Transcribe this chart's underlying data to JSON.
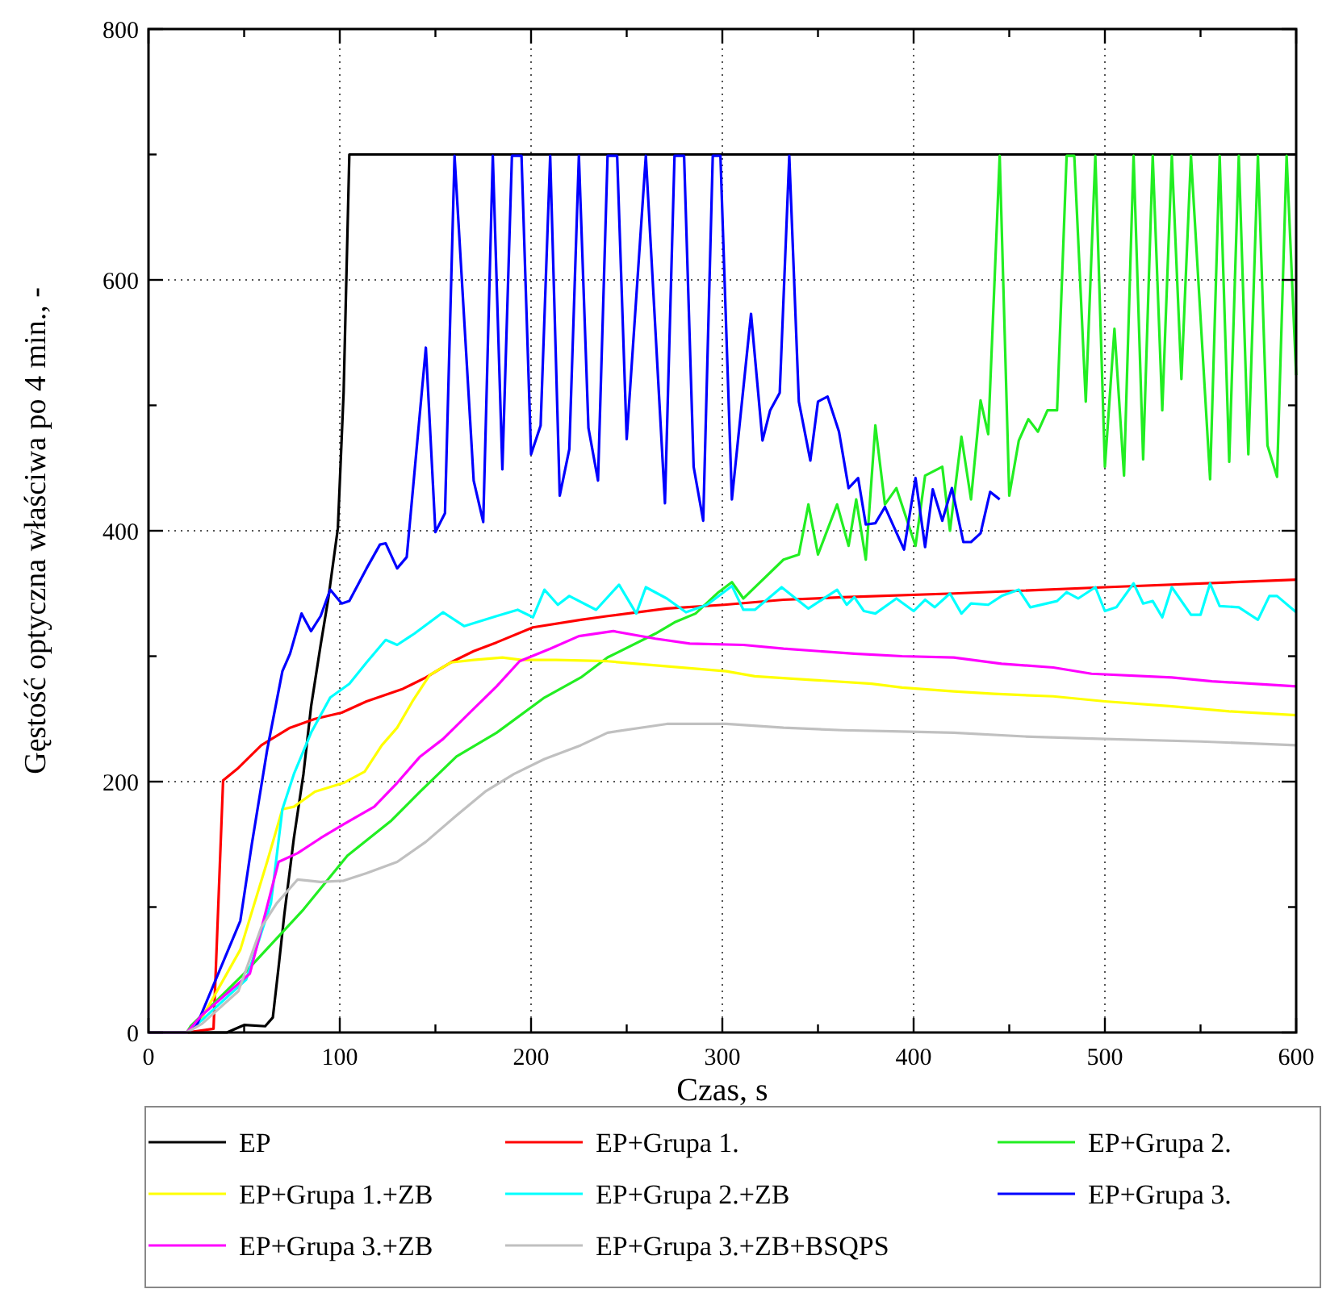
{
  "chart_data": {
    "type": "line",
    "xlabel": "Czas, s",
    "ylabel": "Gęstość optyczna właściwa po 4 min., -",
    "xlim": [
      0,
      600
    ],
    "ylim": [
      0,
      800
    ],
    "xticks": [
      0,
      {
        "value": 50,
        "label": null
      },
      100,
      {
        "value": 150,
        "label": null
      },
      200,
      {
        "value": 250,
        "label": null
      },
      300,
      {
        "value": 350,
        "label": null
      },
      400,
      {
        "value": 450,
        "label": null
      },
      500,
      {
        "value": 550,
        "label": null
      },
      600
    ],
    "yticks": [
      0,
      {
        "value": 100,
        "label": null
      },
      200,
      {
        "value": 300,
        "label": null
      },
      400,
      {
        "value": 500,
        "label": null
      },
      600,
      {
        "value": 700,
        "label": null
      },
      800
    ],
    "grid": true,
    "legend": "bottom",
    "series": [
      {
        "name": "EP",
        "color": "#000000",
        "x": [
          0,
          20,
          41,
          50,
          61,
          65,
          68,
          71,
          76,
          81,
          85,
          90,
          94,
          99,
          102,
          105,
          600
        ],
        "values": [
          0,
          0,
          0,
          6,
          5,
          12,
          52,
          94,
          155,
          206,
          260,
          309,
          346,
          402,
          510,
          700,
          700
        ]
      },
      {
        "name": "EP+Grupa 1.",
        "color": "#ff0000",
        "x": [
          0,
          20,
          34,
          39,
          47,
          59,
          74,
          87,
          101,
          114,
          133,
          145,
          158,
          170,
          182,
          201,
          226,
          240,
          271,
          301,
          332,
          363,
          421,
          500,
          600
        ],
        "values": [
          0,
          0,
          3,
          201,
          211,
          229,
          243,
          250,
          255,
          264,
          274,
          283,
          295,
          304,
          311,
          323,
          329,
          332,
          338,
          341,
          345,
          347,
          350,
          355,
          361
        ]
      },
      {
        "name": "EP+Grupa 2.",
        "color": "#22ee22",
        "x": [
          0,
          20,
          22,
          50,
          81,
          104,
          127,
          142,
          161,
          182,
          207,
          226,
          240,
          265,
          275,
          286,
          298,
          305,
          311,
          332,
          340,
          345,
          350,
          360,
          366,
          370,
          375,
          380,
          385,
          391,
          401,
          406,
          415,
          419,
          425,
          430,
          435,
          439,
          445,
          450,
          455,
          460,
          465,
          470,
          475,
          480,
          484,
          490,
          495,
          500,
          505,
          510,
          515,
          520,
          525,
          530,
          535,
          540,
          545,
          555,
          560,
          565,
          570,
          575,
          580,
          585,
          590,
          595,
          600
        ],
        "values": [
          0,
          0,
          5,
          47,
          98,
          141,
          169,
          192,
          220,
          239,
          267,
          283,
          299,
          318,
          327,
          334,
          351,
          359,
          346,
          377,
          381,
          421,
          381,
          421,
          388,
          425,
          377,
          484,
          421,
          434,
          388,
          444,
          451,
          400,
          475,
          425,
          504,
          477,
          699,
          428,
          472,
          489,
          479,
          496,
          496,
          699,
          699,
          503,
          699,
          451,
          561,
          444,
          699,
          457,
          699,
          496,
          699,
          521,
          699,
          441,
          699,
          455,
          699,
          461,
          699,
          468,
          443,
          699,
          524
        ]
      },
      {
        "name": "EP+Grupa 1.+ZB",
        "color": "#ffff00",
        "x": [
          0,
          20,
          28,
          48,
          62,
          70,
          76,
          87,
          102,
          113,
          122,
          130,
          138,
          147,
          158,
          170,
          185,
          195,
          213,
          240,
          255,
          302,
          317,
          348,
          378,
          394,
          421,
          442,
          473,
          500,
          535,
          565,
          600
        ],
        "values": [
          0,
          0,
          12,
          66,
          136,
          178,
          180,
          192,
          199,
          208,
          229,
          243,
          264,
          285,
          295,
          297,
          299,
          297,
          297,
          296,
          294,
          288,
          284,
          281,
          278,
          275,
          272,
          270,
          268,
          264,
          260,
          256,
          253
        ]
      },
      {
        "name": "EP+Grupa 2.+ZB",
        "color": "#00ffff",
        "x": [
          0,
          20,
          28,
          51,
          64,
          70,
          76,
          85,
          95,
          105,
          114,
          124,
          130,
          139,
          154,
          165,
          182,
          193,
          201,
          207,
          214,
          220,
          234,
          246,
          255,
          260,
          271,
          281,
          292,
          305,
          311,
          317,
          331,
          345,
          360,
          365,
          369,
          374,
          380,
          391,
          400,
          406,
          411,
          419,
          425,
          430,
          439,
          446,
          455,
          461,
          475,
          480,
          486,
          495,
          500,
          506,
          515,
          520,
          525,
          530,
          535,
          545,
          550,
          555,
          560,
          570,
          580,
          586,
          590,
          600
        ],
        "values": [
          0,
          0,
          10,
          42,
          103,
          178,
          206,
          239,
          267,
          278,
          295,
          313,
          309,
          318,
          335,
          324,
          332,
          337,
          331,
          353,
          341,
          348,
          337,
          357,
          334,
          355,
          346,
          335,
          341,
          356,
          337,
          337,
          355,
          338,
          353,
          341,
          347,
          336,
          334,
          346,
          336,
          345,
          339,
          350,
          334,
          342,
          341,
          348,
          353,
          339,
          344,
          351,
          346,
          355,
          336,
          339,
          358,
          342,
          344,
          331,
          355,
          333,
          333,
          358,
          340,
          339,
          329,
          348,
          348,
          335
        ]
      },
      {
        "name": "EP+Grupa 3.",
        "color": "#0000ff",
        "x": [
          0,
          20,
          25,
          48,
          54,
          62,
          70,
          74,
          80,
          85,
          90,
          95,
          101,
          105,
          114,
          121,
          124,
          130,
          135,
          145,
          150,
          155,
          160,
          170,
          175,
          180,
          185,
          190,
          195,
          200,
          205,
          210,
          215,
          220,
          225,
          230,
          235,
          240,
          245,
          250,
          260,
          270,
          275,
          280,
          285,
          290,
          295,
          299,
          305,
          315,
          321,
          325,
          330,
          335,
          340,
          346,
          350,
          355,
          361,
          366,
          371,
          375,
          380,
          385,
          395,
          401,
          406,
          410,
          415,
          420,
          426,
          430,
          435,
          440,
          445
        ],
        "values": [
          0,
          0,
          5,
          89,
          150,
          225,
          288,
          302,
          334,
          320,
          332,
          353,
          342,
          344,
          370,
          389,
          390,
          370,
          379,
          546,
          399,
          414,
          699,
          440,
          407,
          699,
          449,
          699,
          699,
          461,
          484,
          699,
          428,
          465,
          699,
          482,
          440,
          699,
          699,
          473,
          699,
          422,
          699,
          699,
          451,
          408,
          699,
          699,
          425,
          573,
          472,
          496,
          510,
          699,
          503,
          456,
          503,
          507,
          479,
          434,
          442,
          405,
          406,
          419,
          385,
          442,
          387,
          433,
          408,
          434,
          391,
          391,
          398,
          431,
          425
        ]
      },
      {
        "name": "EP+Grupa 3.+ZB",
        "color": "#ff00ff",
        "x": [
          0,
          20,
          28,
          53,
          68,
          78,
          90,
          102,
          118,
          130,
          142,
          154,
          168,
          182,
          194,
          210,
          225,
          243,
          265,
          283,
          311,
          332,
          369,
          394,
          421,
          446,
          473,
          493,
          535,
          556,
          600
        ],
        "values": [
          0,
          0,
          14,
          47,
          136,
          143,
          155,
          166,
          180,
          199,
          220,
          234,
          255,
          276,
          296,
          306,
          316,
          320,
          314,
          310,
          309,
          306,
          302,
          300,
          299,
          294,
          291,
          286,
          283,
          280,
          276
        ]
      },
      {
        "name": "EP+Grupa 3.+ZB+BSQPS",
        "color": "#c0c0c0",
        "x": [
          0,
          20,
          28,
          47,
          59,
          67,
          78,
          90,
          102,
          114,
          130,
          145,
          161,
          176,
          191,
          207,
          226,
          240,
          271,
          302,
          332,
          363,
          394,
          421,
          458,
          500,
          550,
          600
        ],
        "values": [
          0,
          0,
          7,
          33,
          84,
          103,
          122,
          120,
          121,
          127,
          136,
          152,
          173,
          192,
          206,
          218,
          229,
          239,
          246,
          246,
          243,
          241,
          240,
          239,
          236,
          234,
          232,
          229
        ]
      }
    ]
  }
}
